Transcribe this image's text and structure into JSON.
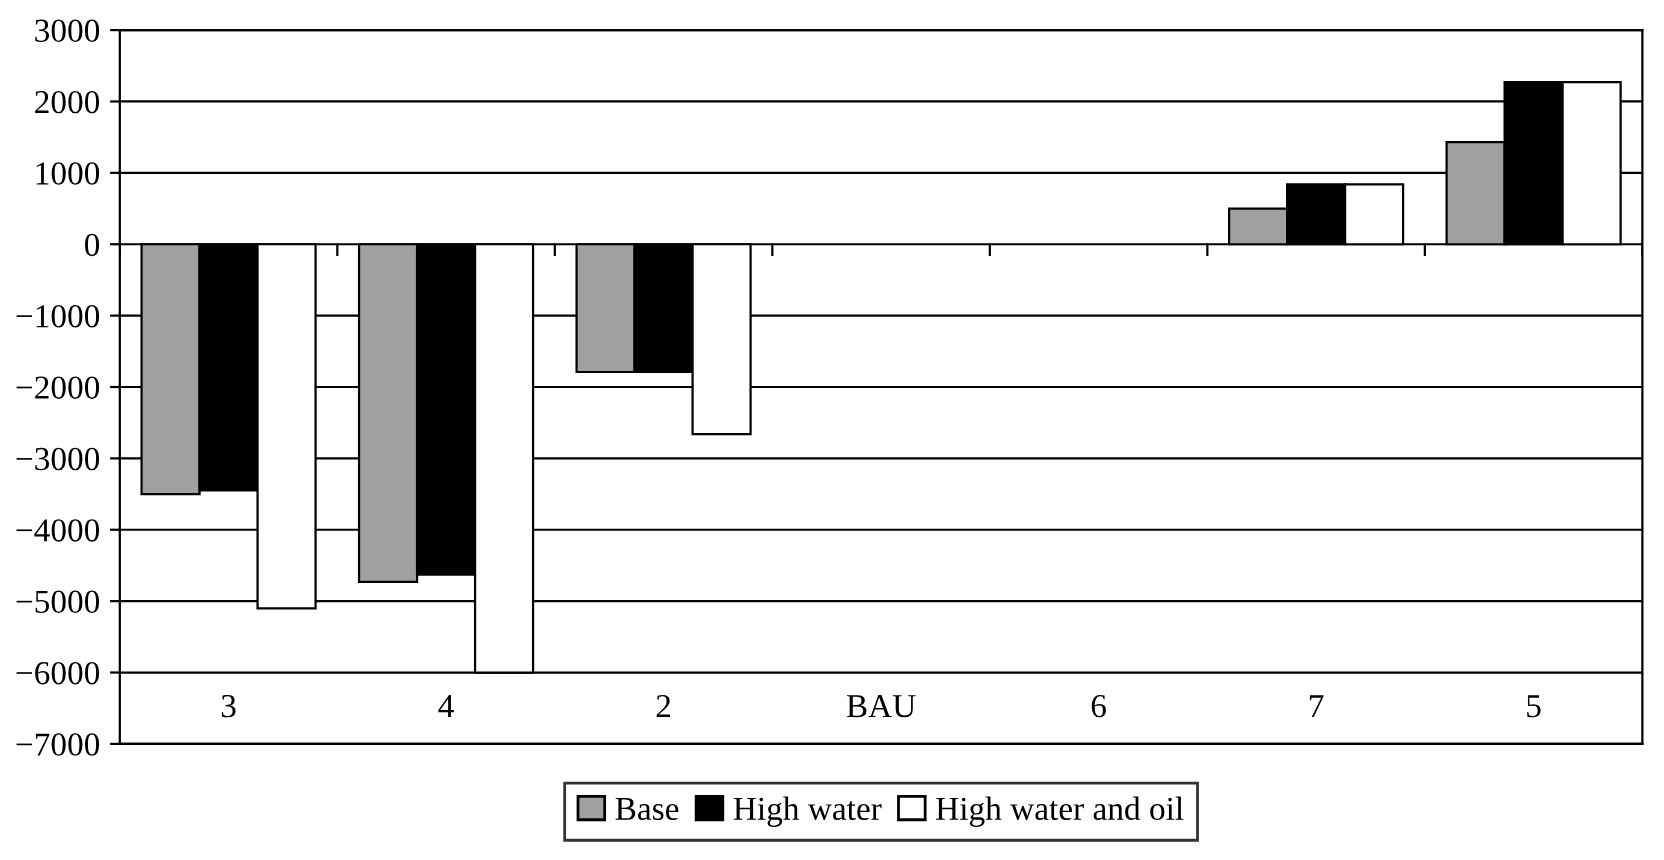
{
  "chart_data": {
    "type": "bar",
    "categories": [
      "3",
      "4",
      "2",
      "BAU",
      "6",
      "7",
      "5"
    ],
    "series": [
      {
        "name": "Base",
        "color": "#a0a0a0",
        "values": [
          -3500,
          -4730,
          -1790,
          0,
          0,
          500,
          1430
        ]
      },
      {
        "name": "High water",
        "color": "#000000",
        "values": [
          -3450,
          -4630,
          -1790,
          0,
          0,
          840,
          2270
        ]
      },
      {
        "name": "High water and oil",
        "color": "#ffffff",
        "values": [
          -5100,
          -6000,
          -2660,
          0,
          0,
          840,
          2270
        ]
      }
    ],
    "ylim": [
      -7000,
      3000
    ],
    "yticks": [
      -7000,
      -6000,
      -5000,
      -4000,
      -3000,
      -2000,
      -1000,
      0,
      1000,
      2000,
      3000
    ],
    "grid": "y",
    "legend": "bottom"
  }
}
